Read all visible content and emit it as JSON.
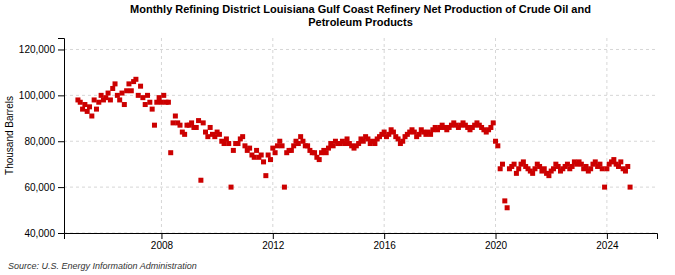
{
  "chart_data": {
    "type": "scatter",
    "title": "Monthly Refining District Louisiana Gulf Coast Refinery Net Production of Crude Oil and\nPetroleum Products",
    "ylabel": "Thousand Barrels",
    "annotation": "Source: U.S. Energy Information Administration",
    "color": "#CC0000",
    "marker": "square",
    "grid": true,
    "xlim": [
      2004.5,
      2025.8
    ],
    "xticks": [
      2008,
      2012,
      2016,
      2020,
      2024
    ],
    "ylim": [
      40000,
      125000
    ],
    "yticks": [
      {
        "value": 40000,
        "label": "40,000"
      },
      {
        "value": 60000,
        "label": "60,000"
      },
      {
        "value": 80000,
        "label": "80,000"
      },
      {
        "value": 100000,
        "label": "100,000"
      },
      {
        "value": 120000,
        "label": "120,000"
      }
    ],
    "x": [
      2005.0,
      2005.083,
      2005.167,
      2005.25,
      2005.333,
      2005.417,
      2005.5,
      2005.583,
      2005.667,
      2005.75,
      2005.833,
      2005.917,
      2006.0,
      2006.083,
      2006.167,
      2006.25,
      2006.333,
      2006.417,
      2006.5,
      2006.583,
      2006.667,
      2006.75,
      2006.833,
      2006.917,
      2007.0,
      2007.083,
      2007.167,
      2007.25,
      2007.333,
      2007.417,
      2007.5,
      2007.583,
      2007.667,
      2007.75,
      2007.833,
      2007.917,
      2008.0,
      2008.083,
      2008.167,
      2008.25,
      2008.333,
      2008.417,
      2008.5,
      2008.583,
      2008.667,
      2008.75,
      2008.833,
      2008.917,
      2009.0,
      2009.083,
      2009.167,
      2009.25,
      2009.333,
      2009.417,
      2009.5,
      2009.583,
      2009.667,
      2009.75,
      2009.833,
      2009.917,
      2010.0,
      2010.083,
      2010.167,
      2010.25,
      2010.333,
      2010.417,
      2010.5,
      2010.583,
      2010.667,
      2010.75,
      2010.833,
      2010.917,
      2011.0,
      2011.083,
      2011.167,
      2011.25,
      2011.333,
      2011.417,
      2011.5,
      2011.583,
      2011.667,
      2011.75,
      2011.833,
      2011.917,
      2012.0,
      2012.083,
      2012.167,
      2012.25,
      2012.333,
      2012.417,
      2012.5,
      2012.583,
      2012.667,
      2012.75,
      2012.833,
      2012.917,
      2013.0,
      2013.083,
      2013.167,
      2013.25,
      2013.333,
      2013.417,
      2013.5,
      2013.583,
      2013.667,
      2013.75,
      2013.833,
      2013.917,
      2014.0,
      2014.083,
      2014.167,
      2014.25,
      2014.333,
      2014.417,
      2014.5,
      2014.583,
      2014.667,
      2014.75,
      2014.833,
      2014.917,
      2015.0,
      2015.083,
      2015.167,
      2015.25,
      2015.333,
      2015.417,
      2015.5,
      2015.583,
      2015.667,
      2015.75,
      2015.833,
      2015.917,
      2016.0,
      2016.083,
      2016.167,
      2016.25,
      2016.333,
      2016.417,
      2016.5,
      2016.583,
      2016.667,
      2016.75,
      2016.833,
      2016.917,
      2017.0,
      2017.083,
      2017.167,
      2017.25,
      2017.333,
      2017.417,
      2017.5,
      2017.583,
      2017.667,
      2017.75,
      2017.833,
      2017.917,
      2018.0,
      2018.083,
      2018.167,
      2018.25,
      2018.333,
      2018.417,
      2018.5,
      2018.583,
      2018.667,
      2018.75,
      2018.833,
      2018.917,
      2019.0,
      2019.083,
      2019.167,
      2019.25,
      2019.333,
      2019.417,
      2019.5,
      2019.583,
      2019.667,
      2019.75,
      2019.833,
      2019.917,
      2020.0,
      2020.083,
      2020.167,
      2020.25,
      2020.333,
      2020.417,
      2020.5,
      2020.583,
      2020.667,
      2020.75,
      2020.833,
      2020.917,
      2021.0,
      2021.083,
      2021.167,
      2021.25,
      2021.333,
      2021.417,
      2021.5,
      2021.583,
      2021.667,
      2021.75,
      2021.833,
      2021.917,
      2022.0,
      2022.083,
      2022.167,
      2022.25,
      2022.333,
      2022.417,
      2022.5,
      2022.583,
      2022.667,
      2022.75,
      2022.833,
      2022.917,
      2023.0,
      2023.083,
      2023.167,
      2023.25,
      2023.333,
      2023.417,
      2023.5,
      2023.583,
      2023.667,
      2023.75,
      2023.833,
      2023.917,
      2024.0,
      2024.083,
      2024.167,
      2024.25,
      2024.333,
      2024.417,
      2024.5,
      2024.583,
      2024.667,
      2024.75,
      2024.833
    ],
    "values": [
      98000,
      97000,
      94000,
      96000,
      93000,
      95000,
      91000,
      98000,
      94000,
      97000,
      100000,
      98000,
      99000,
      101000,
      98000,
      103000,
      105000,
      100000,
      98000,
      101000,
      96000,
      102000,
      105000,
      102000,
      106000,
      107000,
      100000,
      104000,
      99000,
      96000,
      100000,
      97000,
      94000,
      87000,
      97000,
      99000,
      97000,
      100000,
      97000,
      97000,
      75000,
      88000,
      91000,
      88000,
      87000,
      84000,
      83000,
      87000,
      87000,
      88000,
      86000,
      86000,
      89000,
      63000,
      88000,
      84000,
      82000,
      86000,
      83000,
      82000,
      84000,
      83000,
      80000,
      79000,
      81000,
      79000,
      60000,
      76000,
      79000,
      79000,
      81000,
      82000,
      78000,
      76000,
      77000,
      74000,
      73000,
      76000,
      73000,
      74000,
      71000,
      65000,
      74000,
      72000,
      77000,
      75000,
      78000,
      80000,
      78000,
      60000,
      75000,
      76000,
      76000,
      78000,
      80000,
      79000,
      82000,
      80000,
      78000,
      78000,
      76000,
      75000,
      75000,
      73000,
      72000,
      75000,
      76000,
      75000,
      77000,
      79000,
      78000,
      80000,
      79000,
      79000,
      80000,
      79000,
      81000,
      79000,
      78000,
      77000,
      78000,
      79000,
      81000,
      80000,
      82000,
      81000,
      79000,
      80000,
      79000,
      81000,
      82000,
      83000,
      84000,
      82000,
      83000,
      85000,
      84000,
      82000,
      81000,
      79000,
      80000,
      82000,
      83000,
      84000,
      85000,
      84000,
      82000,
      83000,
      85000,
      84000,
      83000,
      84000,
      83000,
      85000,
      86000,
      85000,
      86000,
      87000,
      86000,
      85000,
      86000,
      87000,
      88000,
      87000,
      86000,
      87000,
      88000,
      87000,
      86000,
      85000,
      86000,
      87000,
      88000,
      87000,
      86000,
      85000,
      84000,
      85000,
      86000,
      88000,
      80000,
      78000,
      68000,
      70000,
      54000,
      51000,
      68000,
      69000,
      70000,
      66000,
      68000,
      70000,
      71000,
      69000,
      68000,
      67000,
      66000,
      68000,
      70000,
      69000,
      67000,
      68000,
      66000,
      65000,
      67000,
      68000,
      70000,
      69000,
      67000,
      68000,
      69000,
      70000,
      68000,
      69000,
      71000,
      70000,
      71000,
      70000,
      68000,
      69000,
      67000,
      68000,
      70000,
      71000,
      69000,
      70000,
      68000,
      60000,
      68000,
      70000,
      71000,
      72000,
      70000,
      69000,
      71000,
      68000,
      67000,
      69000,
      60000
    ]
  }
}
